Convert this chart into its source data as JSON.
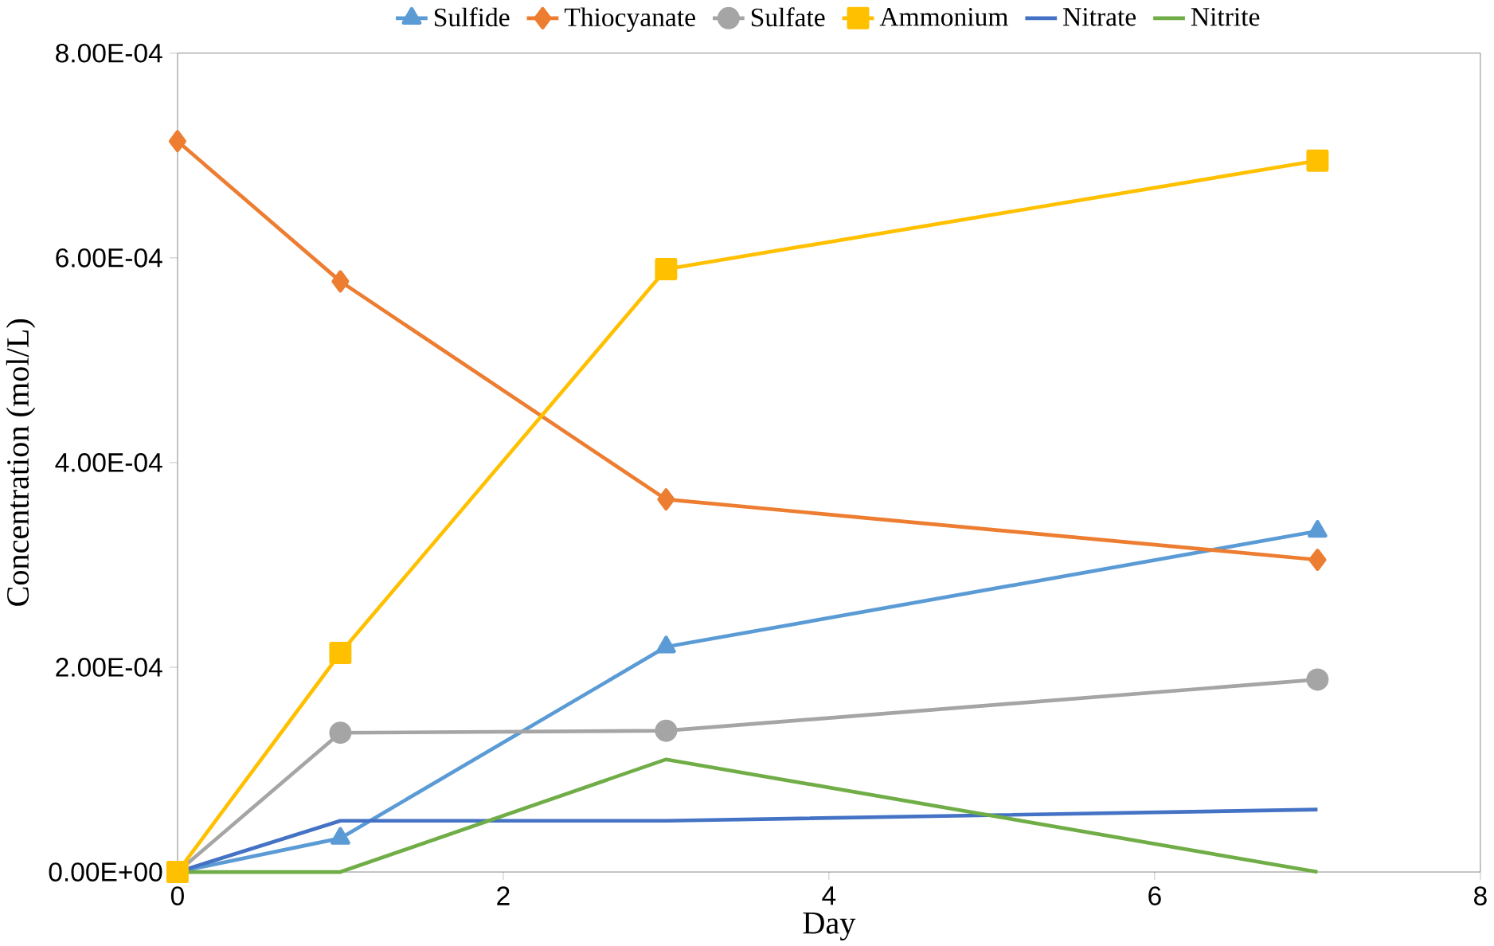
{
  "chart_data": {
    "type": "line",
    "xlabel": "Day",
    "ylabel": "Concentration (mol/L)",
    "x": [
      0,
      1,
      3,
      7
    ],
    "series": [
      {
        "name": "Sulfide",
        "color": "#5b9bd5",
        "marker": "triangle",
        "values": [
          0,
          3.3e-05,
          0.00022,
          0.000333
        ]
      },
      {
        "name": "Thiocyanate",
        "color": "#ed7d31",
        "marker": "diamond",
        "values": [
          0.000714,
          0.000577,
          0.000364,
          0.000305
        ]
      },
      {
        "name": "Sulfate",
        "color": "#a5a5a5",
        "marker": "circle",
        "values": [
          0,
          0.000136,
          0.000138,
          0.000188
        ]
      },
      {
        "name": "Ammonium",
        "color": "#ffc000",
        "marker": "square",
        "values": [
          0,
          0.000214,
          0.000589,
          0.000695
        ]
      },
      {
        "name": "Nitrate",
        "color": "#4472c4",
        "marker": "none",
        "values": [
          0,
          5e-05,
          5e-05,
          6.1e-05
        ]
      },
      {
        "name": "Nitrite",
        "color": "#70ad47",
        "marker": "none",
        "values": [
          0,
          0,
          0.00011,
          0
        ]
      }
    ],
    "xlim": [
      0,
      8
    ],
    "xticks": [
      0,
      2,
      4,
      6,
      8
    ],
    "ylim": [
      0,
      0.0008
    ],
    "yticks": [
      {
        "value": 0,
        "label": "0.00E+00"
      },
      {
        "value": 0.0002,
        "label": "2.00E-04"
      },
      {
        "value": 0.0004,
        "label": "4.00E-04"
      },
      {
        "value": 0.0006,
        "label": "6.00E-04"
      },
      {
        "value": 0.0008,
        "label": "8.00E-04"
      }
    ],
    "grid": false,
    "legend": "top"
  }
}
